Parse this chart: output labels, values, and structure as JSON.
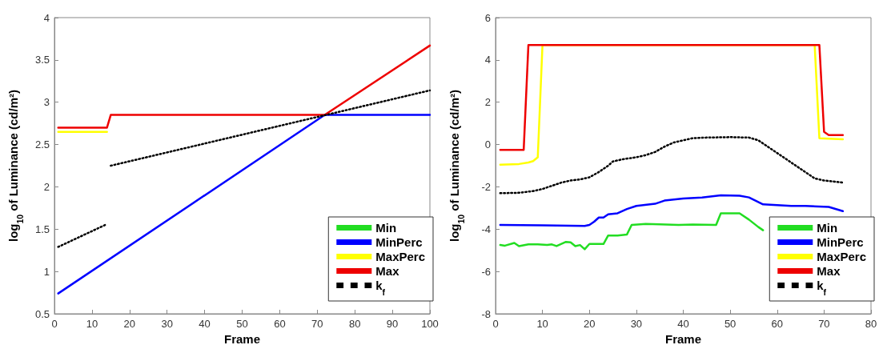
{
  "chart_data": [
    {
      "type": "line",
      "xlabel": "Frame",
      "ylabel": "log$_{10}$ of Luminance (cd/m²)",
      "xlim": [
        0,
        100
      ],
      "xticks": [
        0,
        10,
        20,
        30,
        40,
        50,
        60,
        70,
        80,
        90,
        100
      ],
      "ylim": [
        0.5,
        4
      ],
      "yticks": [
        0.5,
        1,
        1.5,
        2,
        2.5,
        3,
        3.5,
        4
      ],
      "grid": false,
      "legend": "bottom right",
      "marker": "none",
      "series": [
        {
          "name": "Min",
          "color": "#22dd22"
        },
        {
          "name": "MinPerc",
          "color": "#0000ff",
          "x": [
            1,
            72,
            100
          ],
          "values": [
            0.74,
            2.85,
            2.85
          ]
        },
        {
          "name": "MaxPerc",
          "color": "#ffff00",
          "x": [
            1,
            14
          ],
          "values": [
            2.65,
            2.65
          ]
        },
        {
          "name": "Max",
          "color": "#ee0000",
          "x": [
            1,
            14,
            15,
            72,
            100
          ],
          "values": [
            2.7,
            2.7,
            2.85,
            2.85,
            3.67
          ]
        },
        {
          "name": "k$_{f}$",
          "color": "#000000",
          "line_style": "dotted",
          "x": [
            1,
            14,
            null,
            15,
            100
          ],
          "values": [
            1.29,
            1.56,
            null,
            2.25,
            3.14
          ]
        }
      ]
    },
    {
      "type": "line",
      "xlabel": "Frame",
      "ylabel": "log$_{10}$ of Luminance (cd/m²)",
      "xlim": [
        0,
        80
      ],
      "xticks": [
        0,
        10,
        20,
        30,
        40,
        50,
        60,
        70,
        80
      ],
      "ylim": [
        -8,
        6
      ],
      "yticks": [
        -8,
        -6,
        -4,
        -2,
        0,
        2,
        4,
        6
      ],
      "grid": false,
      "legend": "bottom right",
      "marker": "none",
      "series": [
        {
          "name": "Min",
          "color": "#22dd22",
          "x": [
            1,
            2,
            4,
            5,
            7,
            9,
            11,
            12,
            13,
            15,
            16,
            17,
            18,
            19,
            20,
            22,
            23,
            24,
            26,
            28,
            29,
            32,
            35,
            39,
            42,
            47,
            48,
            52,
            54,
            56,
            57
          ],
          "values": [
            -4.75,
            -4.78,
            -4.65,
            -4.8,
            -4.72,
            -4.72,
            -4.75,
            -4.72,
            -4.8,
            -4.6,
            -4.62,
            -4.8,
            -4.75,
            -4.95,
            -4.7,
            -4.7,
            -4.7,
            -4.3,
            -4.3,
            -4.25,
            -3.8,
            -3.75,
            -3.77,
            -3.8,
            -3.78,
            -3.8,
            -3.25,
            -3.25,
            -3.55,
            -3.9,
            -4.05
          ]
        },
        {
          "name": "MinPerc",
          "color": "#0000ff",
          "x": [
            1,
            10,
            19,
            20,
            21,
            22,
            23,
            24,
            26,
            28,
            30,
            34,
            36,
            40,
            44,
            48,
            52,
            54,
            57,
            63,
            66,
            71,
            74
          ],
          "values": [
            -3.8,
            -3.82,
            -3.85,
            -3.8,
            -3.65,
            -3.45,
            -3.45,
            -3.3,
            -3.25,
            -3.05,
            -2.9,
            -2.8,
            -2.65,
            -2.55,
            -2.5,
            -2.4,
            -2.42,
            -2.5,
            -2.83,
            -2.9,
            -2.9,
            -2.95,
            -3.15
          ]
        },
        {
          "name": "MaxPerc",
          "color": "#ffff00",
          "x": [
            1,
            5,
            7,
            8,
            9,
            10,
            68,
            69,
            74
          ],
          "values": [
            -0.95,
            -0.92,
            -0.85,
            -0.78,
            -0.6,
            4.7,
            4.7,
            0.3,
            0.25
          ]
        },
        {
          "name": "Max",
          "color": "#ee0000",
          "x": [
            1,
            6,
            7,
            69,
            70,
            71,
            74
          ],
          "values": [
            -0.25,
            -0.25,
            4.7,
            4.7,
            0.6,
            0.45,
            0.45
          ]
        },
        {
          "name": "k$_{f}$",
          "color": "#000000",
          "line_style": "dotted",
          "x": [
            1,
            5,
            8,
            10,
            12,
            14,
            16,
            18,
            20,
            22,
            24,
            25,
            27,
            30,
            32,
            34,
            36,
            38,
            40,
            42,
            45,
            50,
            54,
            56,
            58,
            60,
            62,
            64,
            66,
            68,
            70,
            74
          ],
          "values": [
            -2.3,
            -2.28,
            -2.2,
            -2.1,
            -1.95,
            -1.8,
            -1.7,
            -1.65,
            -1.55,
            -1.3,
            -1.0,
            -0.8,
            -0.7,
            -0.6,
            -0.5,
            -0.35,
            -0.1,
            0.1,
            0.2,
            0.3,
            0.33,
            0.35,
            0.33,
            0.2,
            -0.1,
            -0.4,
            -0.7,
            -1.0,
            -1.3,
            -1.6,
            -1.7,
            -1.8
          ]
        }
      ]
    }
  ]
}
